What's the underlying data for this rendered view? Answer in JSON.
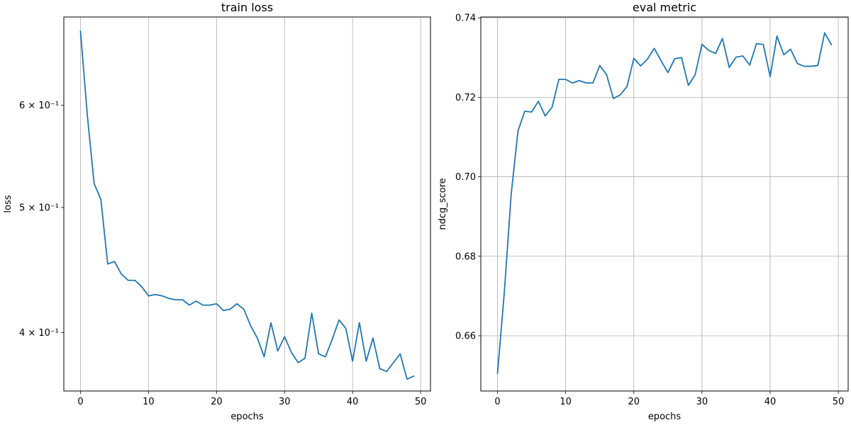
{
  "chart_data": [
    {
      "type": "line",
      "title": "train loss",
      "xlabel": "epochs",
      "ylabel": "loss",
      "yscale": "log",
      "xlim": [
        -2.45,
        51.45
      ],
      "ylim": [
        0.3603,
        0.7025
      ],
      "xticks": [
        0,
        10,
        20,
        30,
        40,
        50
      ],
      "xtick_labels": [
        "0",
        "10",
        "20",
        "30",
        "40",
        "50"
      ],
      "yticks": [
        0.4,
        0.5,
        0.6
      ],
      "ytick_labels": [
        "4 × 10⁻¹",
        "5 × 10⁻¹",
        "6 × 10⁻¹"
      ],
      "grid": "x",
      "color": "#1f77b4",
      "x": [
        0,
        1,
        2,
        3,
        4,
        5,
        6,
        7,
        8,
        9,
        10,
        11,
        12,
        13,
        14,
        15,
        16,
        17,
        18,
        19,
        20,
        21,
        22,
        23,
        24,
        25,
        26,
        27,
        28,
        29,
        30,
        31,
        32,
        33,
        34,
        35,
        36,
        37,
        38,
        39,
        40,
        41,
        42,
        43,
        44,
        45,
        46,
        47,
        48,
        49
      ],
      "y": [
        0.685,
        0.59,
        0.522,
        0.507,
        0.452,
        0.454,
        0.444,
        0.439,
        0.439,
        0.434,
        0.427,
        0.428,
        0.427,
        0.425,
        0.424,
        0.424,
        0.42,
        0.423,
        0.42,
        0.42,
        0.421,
        0.416,
        0.417,
        0.421,
        0.417,
        0.405,
        0.396,
        0.383,
        0.407,
        0.387,
        0.397,
        0.386,
        0.379,
        0.382,
        0.414,
        0.385,
        0.383,
        0.395,
        0.409,
        0.403,
        0.38,
        0.407,
        0.38,
        0.396,
        0.375,
        0.373,
        0.379,
        0.385,
        0.368,
        0.37
      ]
    },
    {
      "type": "line",
      "title": "eval metric",
      "xlabel": "epochs",
      "ylabel": "ndcg_score",
      "xlim": [
        -2.45,
        51.45
      ],
      "ylim": [
        0.6461,
        0.7402
      ],
      "xticks": [
        0,
        10,
        20,
        30,
        40,
        50
      ],
      "xtick_labels": [
        "0",
        "10",
        "20",
        "30",
        "40",
        "50"
      ],
      "yticks": [
        0.66,
        0.68,
        0.7,
        0.72,
        0.74
      ],
      "ytick_labels": [
        "0.66",
        "0.68",
        "0.70",
        "0.72",
        "0.74"
      ],
      "grid": "both",
      "color": "#1f77b4",
      "x": [
        0,
        1,
        2,
        3,
        4,
        5,
        6,
        7,
        8,
        9,
        10,
        11,
        12,
        13,
        14,
        15,
        16,
        17,
        18,
        19,
        20,
        21,
        22,
        23,
        24,
        25,
        26,
        27,
        28,
        29,
        30,
        31,
        32,
        33,
        34,
        35,
        36,
        37,
        38,
        39,
        40,
        41,
        42,
        43,
        44,
        45,
        46,
        47,
        48,
        49
      ],
      "y": [
        0.6505,
        0.671,
        0.6955,
        0.7115,
        0.7165,
        0.7163,
        0.719,
        0.7153,
        0.7175,
        0.7245,
        0.7245,
        0.7236,
        0.7242,
        0.7236,
        0.7236,
        0.728,
        0.7257,
        0.7197,
        0.7206,
        0.7227,
        0.7298,
        0.7279,
        0.7296,
        0.7323,
        0.7292,
        0.7262,
        0.7297,
        0.73,
        0.723,
        0.7257,
        0.7333,
        0.7318,
        0.731,
        0.7348,
        0.7275,
        0.7301,
        0.7304,
        0.7281,
        0.7335,
        0.7333,
        0.7252,
        0.7354,
        0.7307,
        0.7321,
        0.7285,
        0.7278,
        0.7278,
        0.728,
        0.7362,
        0.7332
      ]
    }
  ]
}
